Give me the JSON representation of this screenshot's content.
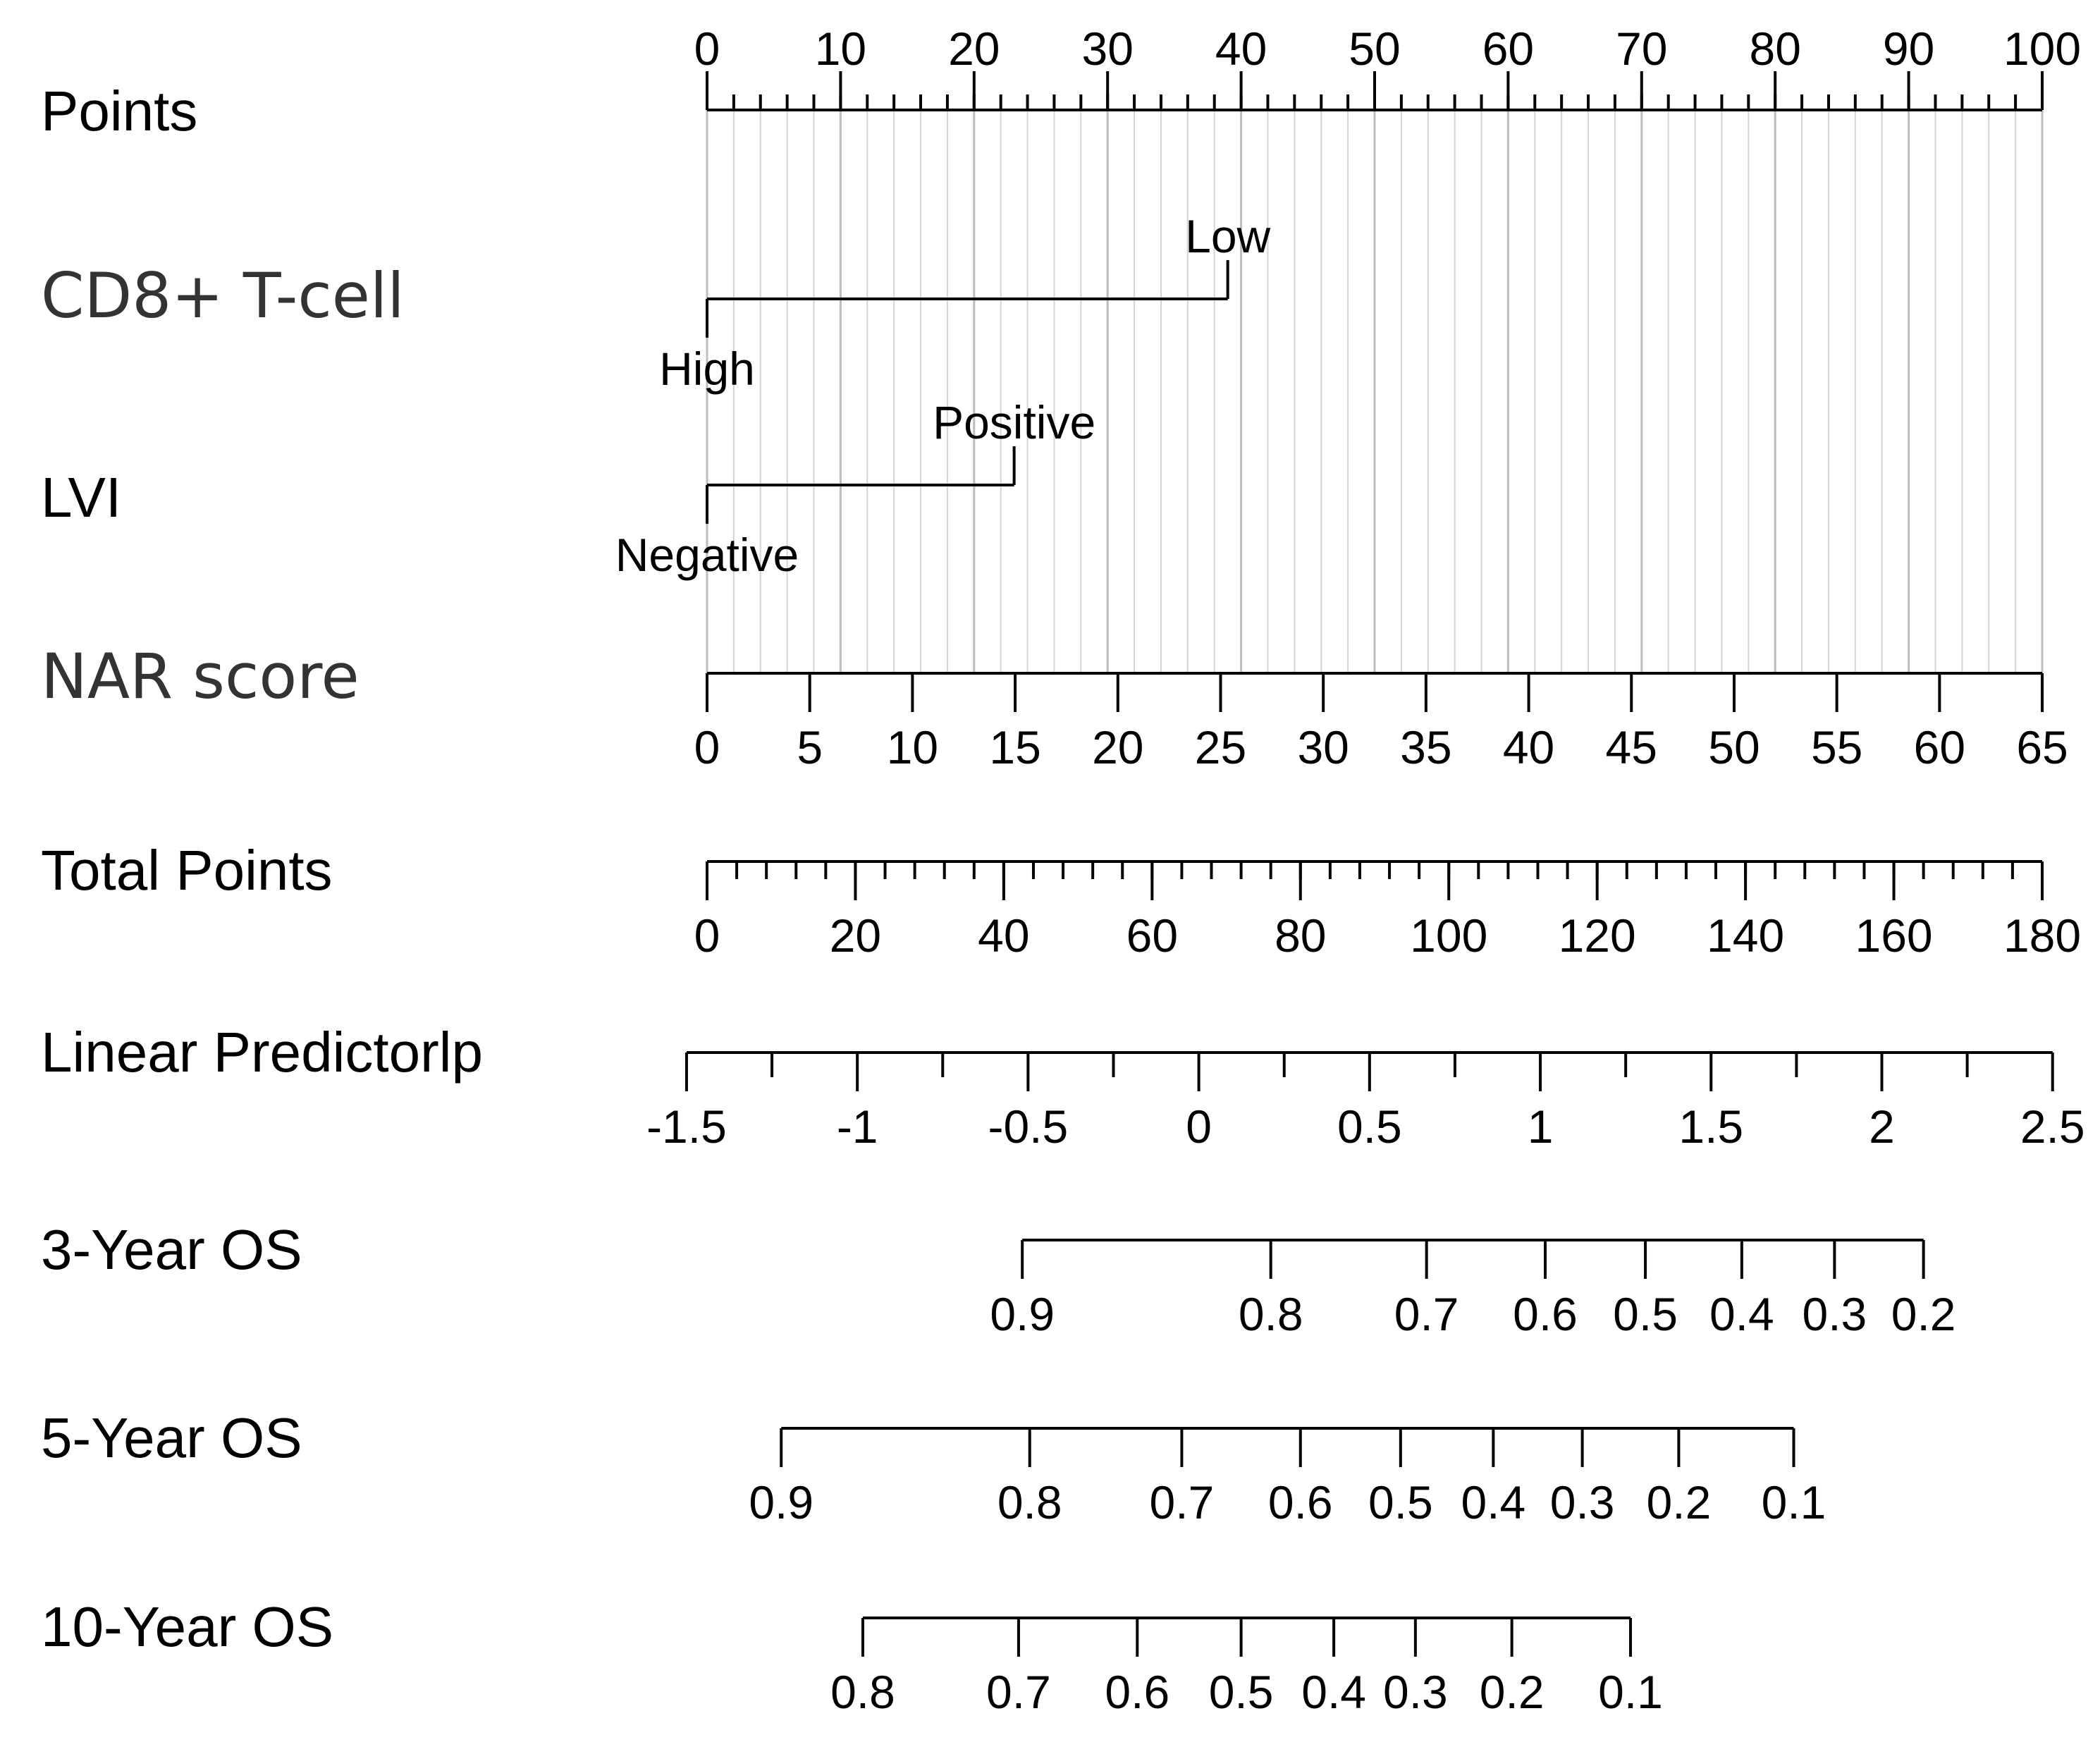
{
  "chart_data": {
    "type": "nomogram",
    "points_min": 0,
    "points_max": 100,
    "total_points_min": 0,
    "total_points_max": 180,
    "rows": [
      {
        "name": "Points",
        "kind": "axis",
        "tick_side": "above",
        "major": [
          0,
          10,
          20,
          30,
          40,
          50,
          60,
          70,
          80,
          90,
          100
        ],
        "labels": [
          "0",
          "10",
          "20",
          "30",
          "40",
          "50",
          "60",
          "70",
          "80",
          "90",
          "100"
        ],
        "minor_step": 2
      },
      {
        "name": "CD8+ T-cell",
        "kind": "categorical",
        "levels": [
          {
            "label": "High",
            "points": 0,
            "side": "below"
          },
          {
            "label": "Low",
            "points": 39,
            "side": "above"
          }
        ]
      },
      {
        "name": "LVI",
        "kind": "categorical",
        "levels": [
          {
            "label": "Negative",
            "points": 0,
            "side": "below"
          },
          {
            "label": "Positive",
            "points": 23,
            "side": "above"
          }
        ]
      },
      {
        "name": "NAR score",
        "kind": "axis",
        "tick_side": "below",
        "major": [
          0,
          5,
          10,
          15,
          20,
          25,
          30,
          35,
          40,
          45,
          50,
          55,
          60,
          65
        ],
        "labels": [
          "0",
          "5",
          "10",
          "15",
          "20",
          "25",
          "30",
          "35",
          "40",
          "45",
          "50",
          "55",
          "60",
          "65"
        ],
        "map_points_per_unit": 1.5385
      },
      {
        "name": "Total Points",
        "kind": "total",
        "tick_side": "below",
        "major": [
          0,
          20,
          40,
          60,
          80,
          100,
          120,
          140,
          160,
          180
        ],
        "labels": [
          "0",
          "20",
          "40",
          "60",
          "80",
          "100",
          "120",
          "140",
          "160",
          "180"
        ],
        "minor_step": 4
      },
      {
        "name": "Linear Predictorlp",
        "kind": "lp",
        "tick_side": "below",
        "major": [
          -1.5,
          -1,
          -0.5,
          0,
          0.5,
          1,
          1.5,
          2,
          2.5
        ],
        "labels": [
          "-1.5",
          "-1",
          "-0.5",
          "0",
          "0.5",
          "1",
          "1.5",
          "2",
          "2.5"
        ],
        "minor": [
          -1.25,
          -0.75,
          -0.25,
          0.25,
          0.75,
          1.25,
          1.75,
          2.25
        ],
        "lp_at_total_0": -1.44,
        "lp_per_total_point": 0.02172
      },
      {
        "name": "3-Year OS",
        "kind": "survival",
        "tick_side": "below",
        "values": [
          0.9,
          0.8,
          0.7,
          0.6,
          0.5,
          0.4,
          0.3,
          0.2
        ],
        "labels": [
          "0.9",
          "0.8",
          "0.7",
          "0.6",
          "0.5",
          "0.4",
          "0.3",
          "0.2"
        ],
        "total_points": [
          42.5,
          76,
          97,
          113,
          126.5,
          139.5,
          152,
          164
        ]
      },
      {
        "name": "5-Year OS",
        "kind": "survival",
        "tick_side": "below",
        "values": [
          0.9,
          0.8,
          0.7,
          0.6,
          0.5,
          0.4,
          0.3,
          0.2,
          0.1
        ],
        "labels": [
          "0.9",
          "0.8",
          "0.7",
          "0.6",
          "0.5",
          "0.4",
          "0.3",
          "0.2",
          "0.1"
        ],
        "total_points": [
          10,
          43.5,
          64,
          80,
          93.5,
          106,
          118,
          131,
          146.5
        ]
      },
      {
        "name": "10-Year OS",
        "kind": "survival",
        "tick_side": "below",
        "values": [
          0.8,
          0.7,
          0.6,
          0.5,
          0.4,
          0.3,
          0.2,
          0.1
        ],
        "labels": [
          "0.8",
          "0.7",
          "0.6",
          "0.5",
          "0.4",
          "0.3",
          "0.2",
          "0.1"
        ],
        "total_points": [
          21,
          42,
          58,
          72,
          84.5,
          95.5,
          108.5,
          124.5
        ]
      }
    ]
  }
}
